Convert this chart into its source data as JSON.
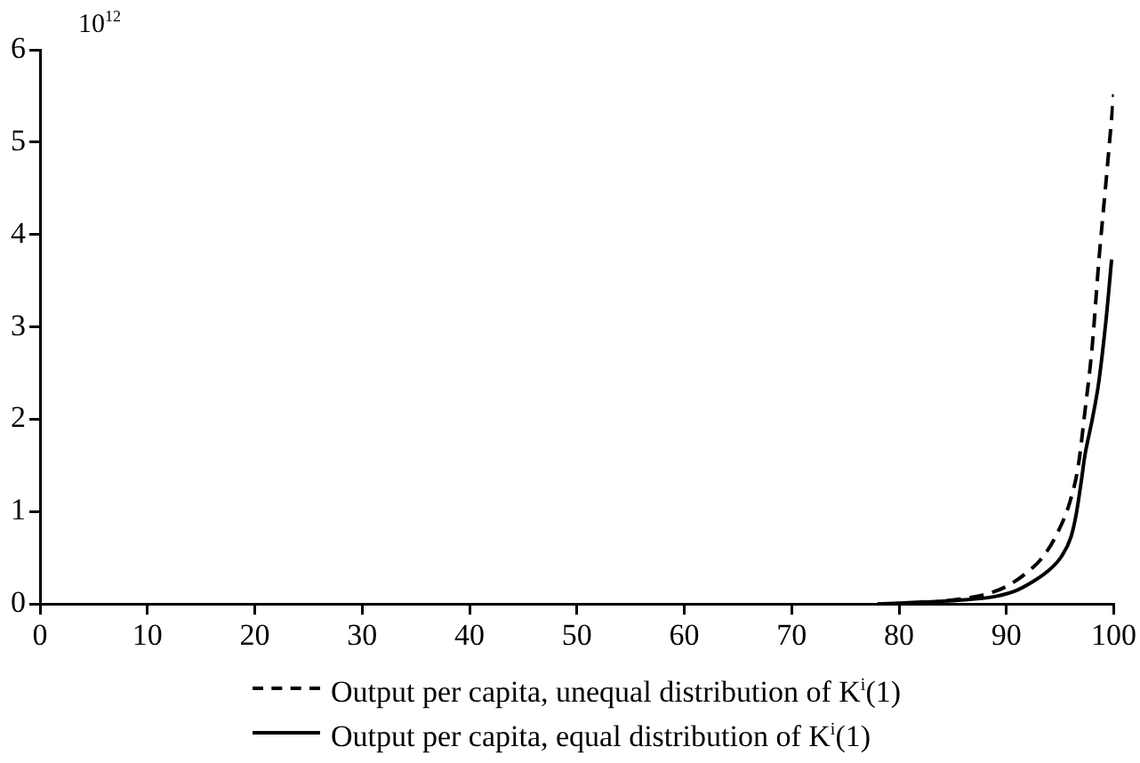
{
  "chart_data": {
    "type": "line",
    "xlim": [
      0,
      100
    ],
    "xticks": [
      0,
      10,
      20,
      30,
      40,
      50,
      60,
      70,
      80,
      90,
      100
    ],
    "ylim": [
      0,
      6
    ],
    "yticks": [
      0,
      1,
      2,
      3,
      4,
      5,
      6
    ],
    "grid": false,
    "legend": "bottom",
    "marker": "none",
    "annotations": [
      "10$^{12}$"
    ],
    "series": [
      {
        "name": "Output per capita, unequal distribution of K$^{i}$(1)",
        "color": "#000000",
        "line_style": "dashed",
        "x": [
          78,
          81,
          84,
          86.6,
          88.5,
          90,
          91.8,
          93.4,
          94.8,
          95.9,
          96.7,
          97.3,
          98,
          98.6,
          99.3,
          100
        ],
        "values": [
          0,
          0,
          0.03,
          0.07,
          0.12,
          0.19,
          0.33,
          0.51,
          0.78,
          1.1,
          1.5,
          2.07,
          2.8,
          3.7,
          4.6,
          5.52
        ]
      },
      {
        "name": "Output per capita, equal distribution of K$^{i}$(1)",
        "color": "#000000",
        "line_style": "solid",
        "x": [
          78,
          82.1,
          85.5,
          88.9,
          90.8,
          92.3,
          93.8,
          95.1,
          96,
          96.5,
          97,
          97.3,
          98,
          98.6,
          99.3,
          99.8
        ],
        "values": [
          0,
          0.02,
          0.04,
          0.08,
          0.14,
          0.23,
          0.35,
          0.51,
          0.72,
          0.97,
          1.35,
          1.6,
          2.0,
          2.4,
          3.1,
          3.73
        ]
      }
    ]
  }
}
